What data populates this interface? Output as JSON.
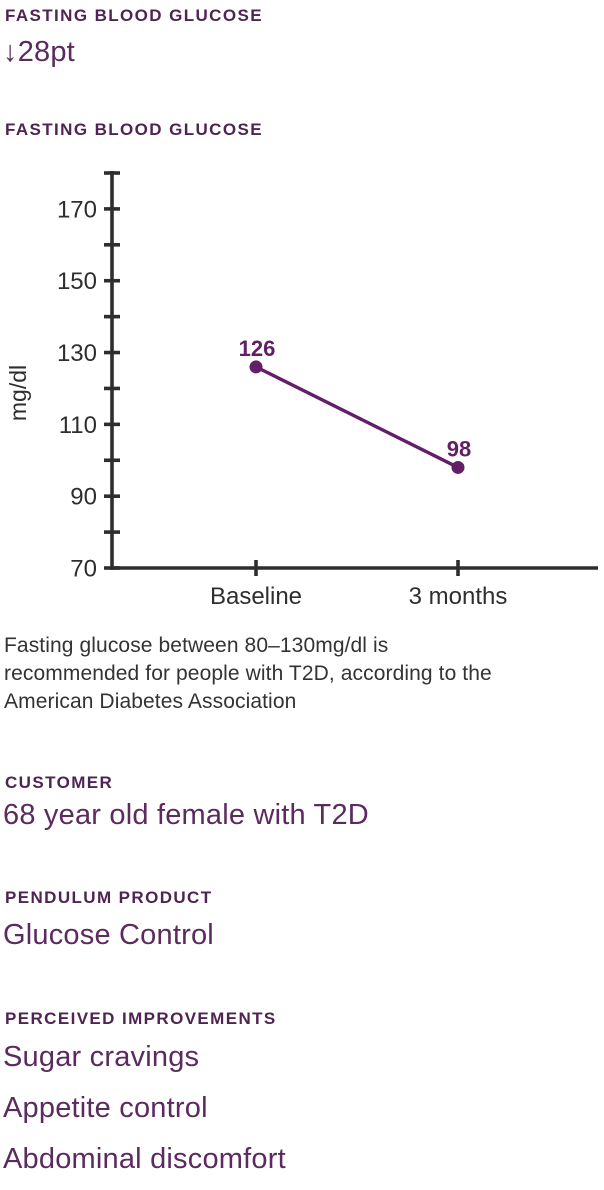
{
  "colors": {
    "header_purple": "#4f2453",
    "text_purple": "#5b2a5f",
    "chart_purple": "#621e67",
    "axis_dark": "#2e2e2e",
    "caption_gray": "#333333",
    "background": "#ffffff"
  },
  "summary": {
    "label": "FASTING BLOOD GLUCOSE",
    "value": "↓28pt"
  },
  "chart_section": {
    "label": "FASTING BLOOD GLUCOSE"
  },
  "chart_data": {
    "type": "line",
    "title": "FASTING BLOOD GLUCOSE",
    "categories": [
      "Baseline",
      "3 months"
    ],
    "values": [
      126,
      98
    ],
    "point_labels": [
      "126",
      "98"
    ],
    "xlabel": "",
    "ylabel": "mg/dl",
    "ylim": [
      70,
      180
    ],
    "ytick_step": 10,
    "yticks_labeled": [
      70,
      90,
      110,
      130,
      150,
      170
    ],
    "grid": false,
    "legend": false,
    "series_color": "#621e67",
    "axis_color": "#2e2e2e"
  },
  "caption": {
    "lines": [
      "Fasting glucose between 80–130mg/dl is",
      "recommended for people with T2D, according to the",
      "American Diabetes Association"
    ]
  },
  "customer": {
    "label": "CUSTOMER",
    "value": "68 year old female with T2D"
  },
  "product": {
    "label": "PENDULUM PRODUCT",
    "value": "Glucose Control"
  },
  "improvements": {
    "label": "PERCEIVED IMPROVEMENTS",
    "items": [
      "Sugar cravings",
      "Appetite control",
      "Abdominal discomfort"
    ]
  }
}
